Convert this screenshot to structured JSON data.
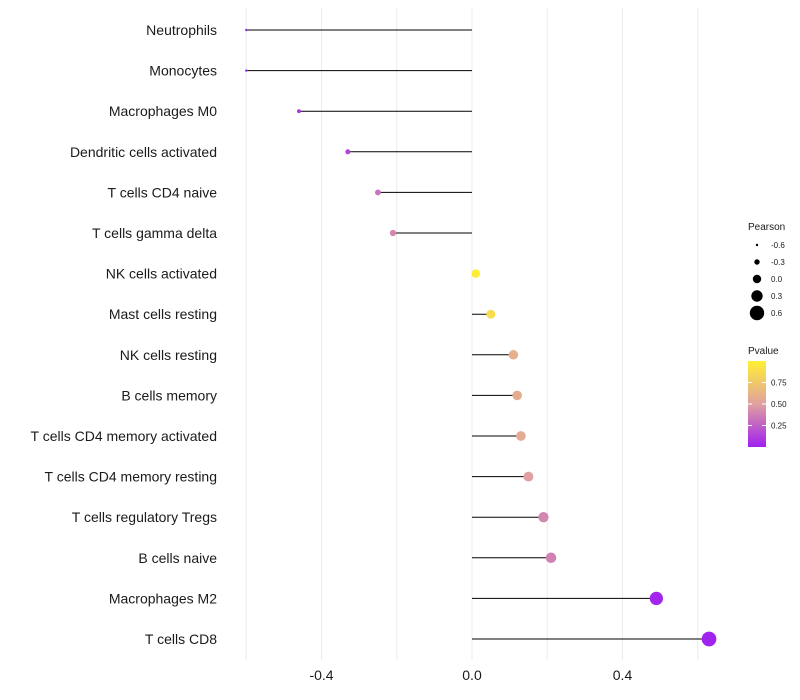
{
  "chart_data": {
    "type": "lollipop",
    "title": "",
    "xlabel": "",
    "ylabel": "",
    "xlim": [
      -0.61,
      0.67
    ],
    "x_ticks": [
      -0.4,
      0.0,
      0.4
    ],
    "x_tick_labels": [
      "-0.4",
      "0.0",
      "0.4"
    ],
    "gridlines": true,
    "categories": [
      "Neutrophils",
      "Monocytes",
      "Macrophages M0",
      "Dendritic cells activated",
      "T cells CD4 naive",
      "T cells gamma delta",
      "NK cells activated",
      "Mast cells resting",
      "NK cells resting",
      "B cells memory",
      "T cells CD4 memory activated",
      "T cells CD4 memory resting",
      "T cells regulatory  Tregs ",
      "B cells naive",
      "Macrophages M2",
      "T cells CD8"
    ],
    "pearson": [
      -0.6,
      -0.6,
      -0.46,
      -0.33,
      -0.25,
      -0.21,
      0.01,
      0.05,
      0.11,
      0.12,
      0.13,
      0.15,
      0.19,
      0.21,
      0.49,
      0.63
    ],
    "pvalue": [
      0.02,
      0.02,
      0.08,
      0.15,
      0.32,
      0.4,
      0.98,
      0.88,
      0.6,
      0.58,
      0.56,
      0.5,
      0.4,
      0.38,
      0.02,
      0.01
    ],
    "size_legend": {
      "title": "Pearson",
      "labels": [
        "-0.6",
        "-0.3",
        "0.0",
        "0.3",
        "0.6"
      ],
      "values": [
        -0.6,
        -0.3,
        0.0,
        0.3,
        0.6
      ]
    },
    "color_legend": {
      "title": "Pvalue",
      "labels": [
        "0.75",
        "0.50",
        "0.25"
      ],
      "values": [
        0.75,
        0.5,
        0.25
      ],
      "range": [
        0.0,
        1.0
      ],
      "low_color": "#a020f0",
      "mid_color": "#e0a0a0",
      "high_color": "#fff033"
    },
    "stem_color": "#000000",
    "grid_color": "#ebebeb"
  }
}
